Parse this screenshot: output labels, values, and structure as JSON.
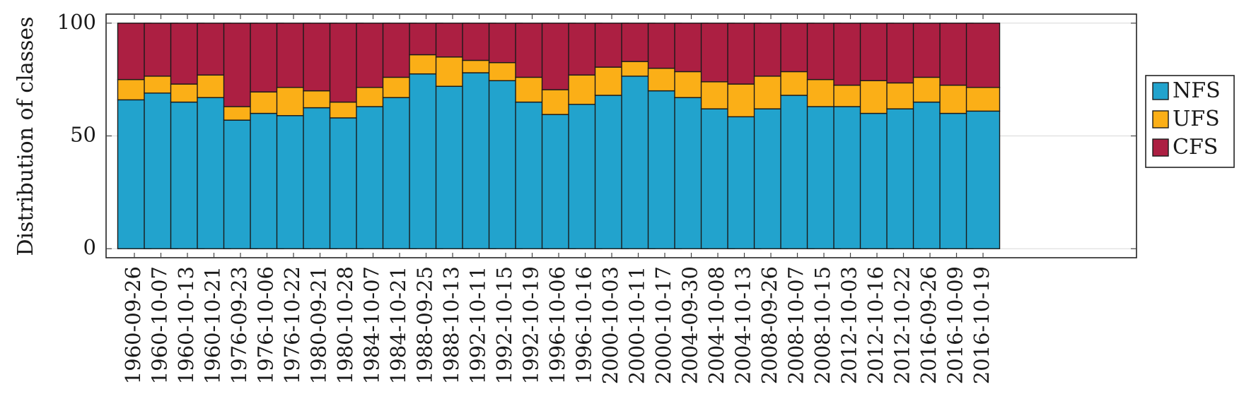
{
  "chart_data": {
    "type": "bar",
    "stacked": true,
    "ylabel": "Distribution of classes",
    "xlabel": "",
    "ylim": [
      -4,
      104
    ],
    "yticks": [
      0,
      50,
      100
    ],
    "grid": true,
    "legend_position": "right",
    "categories": [
      "1960-09-26",
      "1960-10-07",
      "1960-10-13",
      "1960-10-21",
      "1976-09-23",
      "1976-10-06",
      "1976-10-22",
      "1980-09-21",
      "1980-10-28",
      "1984-10-07",
      "1984-10-21",
      "1988-09-25",
      "1988-10-13",
      "1992-10-11",
      "1992-10-15",
      "1992-10-19",
      "1996-10-06",
      "1996-10-16",
      "2000-10-03",
      "2000-10-11",
      "2000-10-17",
      "2004-09-30",
      "2004-10-08",
      "2004-10-13",
      "2008-09-26",
      "2008-10-07",
      "2008-10-15",
      "2012-10-03",
      "2012-10-16",
      "2012-10-22",
      "2016-09-26",
      "2016-10-09",
      "2016-10-19"
    ],
    "series": [
      {
        "name": "NFS",
        "color": "#22a3cd",
        "values": [
          66,
          69,
          65,
          67,
          57,
          60,
          59,
          62.5,
          58,
          63,
          67,
          77.5,
          72,
          78,
          74.5,
          65,
          59.5,
          64,
          68,
          76.5,
          70,
          67,
          62,
          58.5,
          62,
          68,
          63,
          63,
          60,
          62,
          65,
          60,
          61
        ]
      },
      {
        "name": "UFS",
        "color": "#fbaf17",
        "values": [
          9,
          7.5,
          8,
          10,
          6,
          9.5,
          12.5,
          7.5,
          7,
          8.5,
          9,
          8.5,
          13,
          5.5,
          8,
          11,
          11,
          13,
          12.5,
          6.5,
          10,
          11.5,
          12,
          14.5,
          14.5,
          10.5,
          12,
          9.5,
          14.5,
          11.5,
          11,
          12.5,
          10.5
        ]
      },
      {
        "name": "CFS",
        "color": "#ac1f42",
        "values": [
          25,
          23.5,
          27,
          23,
          37,
          30.5,
          28.5,
          30,
          35,
          28.5,
          24,
          14,
          15,
          16.5,
          17.5,
          24,
          29.5,
          23,
          19.5,
          17,
          20,
          21.5,
          26,
          27,
          23.5,
          21.5,
          25,
          27.5,
          25.5,
          26.5,
          24,
          27.5,
          28.5
        ]
      }
    ]
  }
}
